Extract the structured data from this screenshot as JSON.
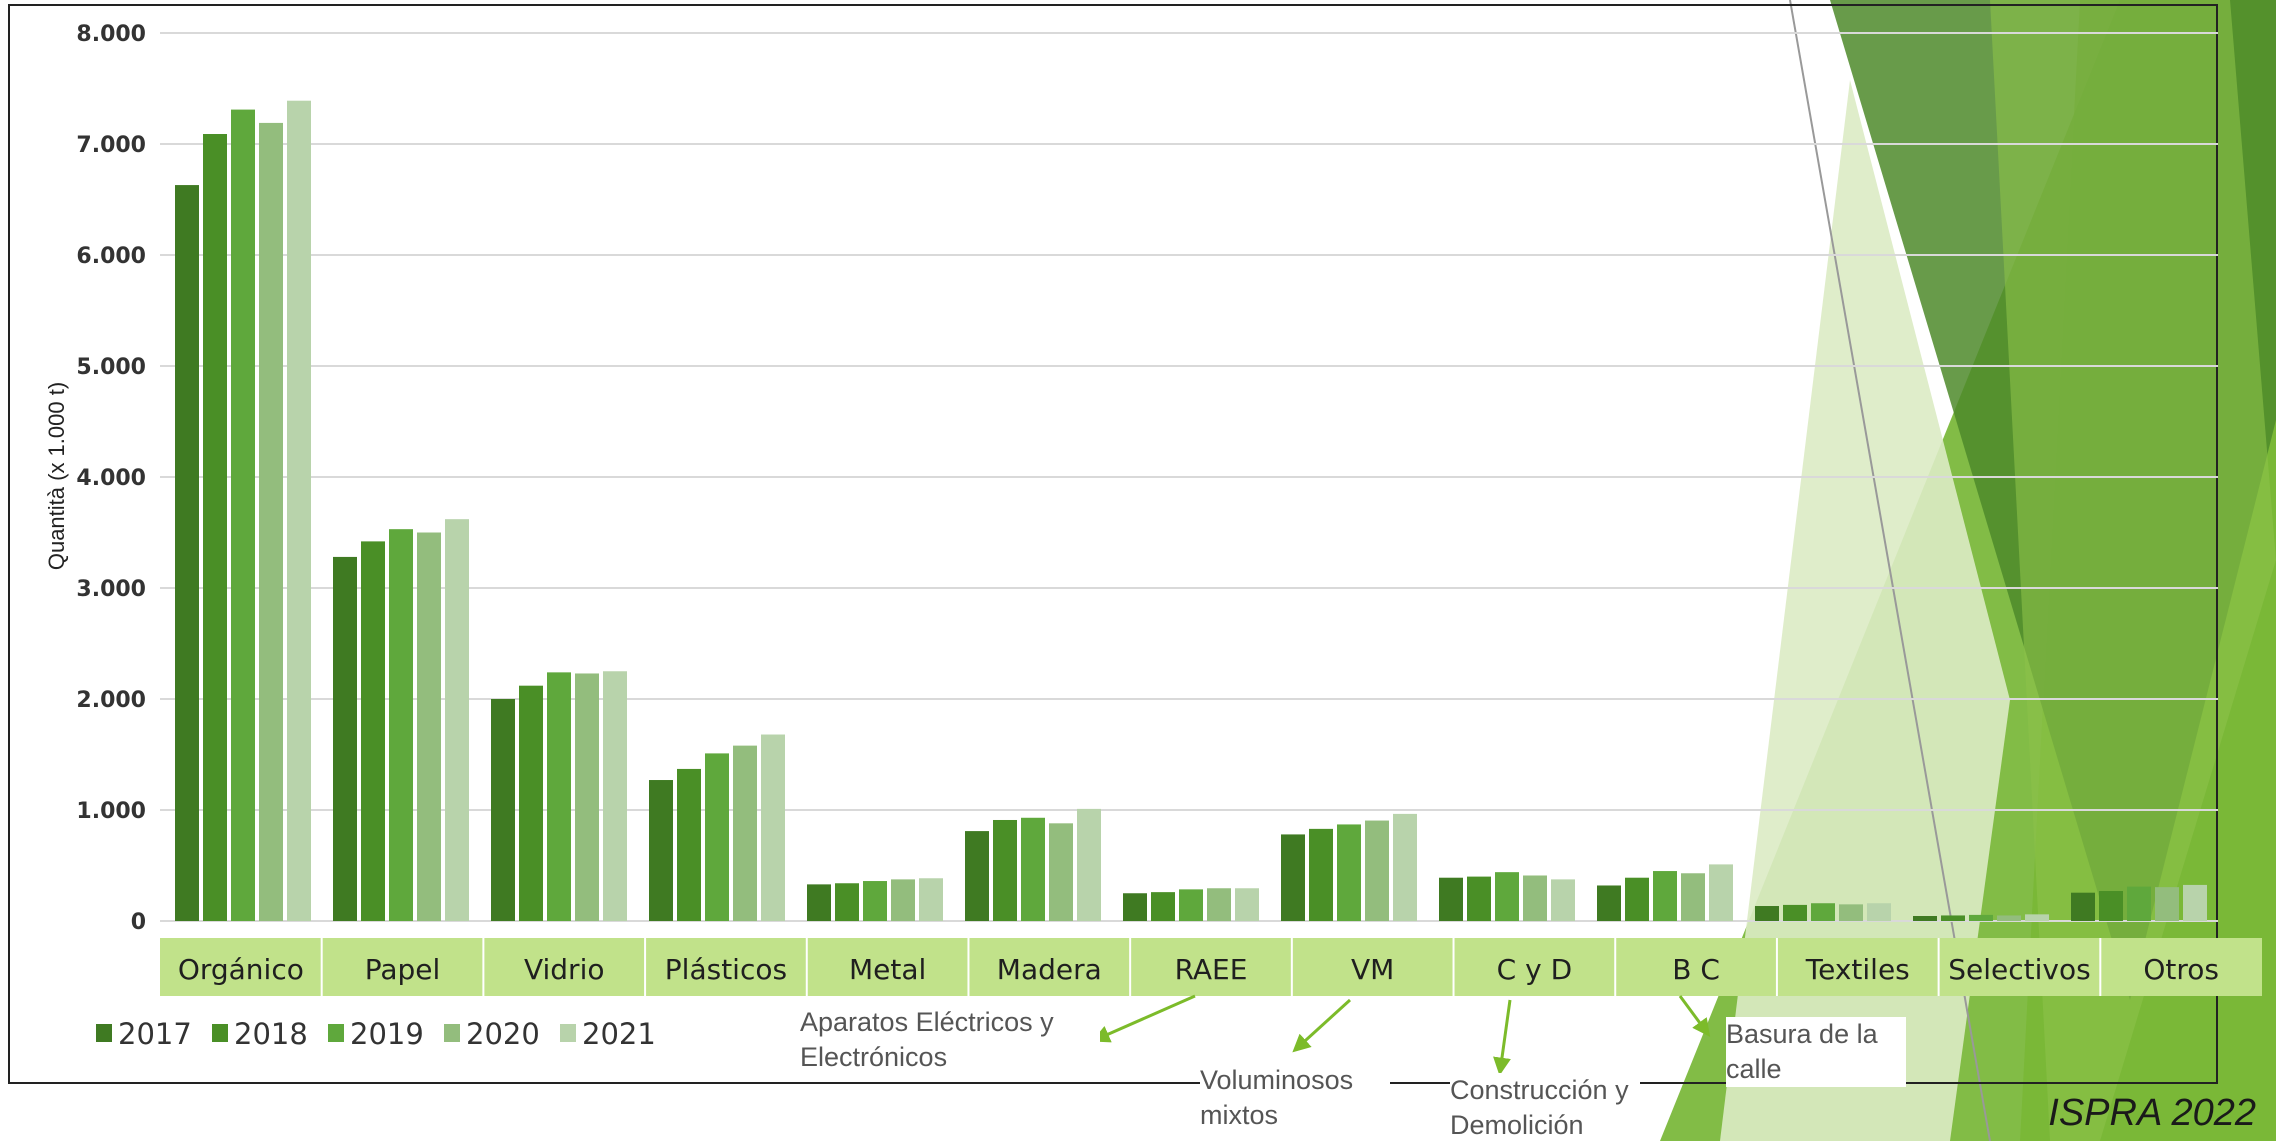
{
  "chart_data": {
    "type": "bar",
    "title": "",
    "xlabel": "",
    "ylabel": "Quantità (x 1.000 t)",
    "ylim": [
      0,
      8000
    ],
    "yticks": [
      0,
      1000,
      2000,
      3000,
      4000,
      5000,
      6000,
      7000,
      8000
    ],
    "ytick_labels": [
      "0",
      "1.000",
      "2.000",
      "3.000",
      "4.000",
      "5.000",
      "6.000",
      "7.000",
      "8.000"
    ],
    "grid": true,
    "legend_position": "bottom-left",
    "categories": [
      "Orgánico",
      "Papel",
      "Vidrio",
      "Plásticos",
      "Metal",
      "Madera",
      "RAEE",
      "VM",
      "C y D",
      "B C",
      "Textiles",
      "Selectivos",
      "Otros"
    ],
    "series": [
      {
        "name": "2017",
        "color": "#3f7a22",
        "values": [
          6630,
          3280,
          2000,
          1270,
          330,
          810,
          250,
          780,
          390,
          320,
          135,
          45,
          255
        ]
      },
      {
        "name": "2018",
        "color": "#4a8f26",
        "values": [
          7090,
          3420,
          2120,
          1370,
          340,
          910,
          260,
          830,
          400,
          390,
          145,
          50,
          270
        ]
      },
      {
        "name": "2019",
        "color": "#5fa83c",
        "values": [
          7310,
          3530,
          2240,
          1510,
          360,
          930,
          285,
          870,
          440,
          450,
          160,
          55,
          310
        ]
      },
      {
        "name": "2020",
        "color": "#93bd7d",
        "values": [
          7190,
          3500,
          2230,
          1580,
          375,
          880,
          295,
          905,
          410,
          430,
          150,
          50,
          305
        ]
      },
      {
        "name": "2021",
        "color": "#b8d3ab",
        "values": [
          7390,
          3620,
          2250,
          1680,
          385,
          1010,
          295,
          965,
          375,
          510,
          160,
          60,
          325
        ]
      }
    ]
  },
  "annotations": {
    "raee": "Aparatos Eléctricos y Electrónicos",
    "vm": "Voluminosos mixtos",
    "cyd": "Construcción y Demolición",
    "bc": "Basura de la calle"
  },
  "source": "ISPRA 2022",
  "colors": {
    "category_band": "#c1e28a",
    "grid": "#d9d9d9",
    "arrow": "#7cbb2a",
    "deco_dark": "#4e8a2a",
    "deco_mid": "#74b532",
    "deco_light": "#a9d36a",
    "deco_pale": "#dcebc4"
  }
}
